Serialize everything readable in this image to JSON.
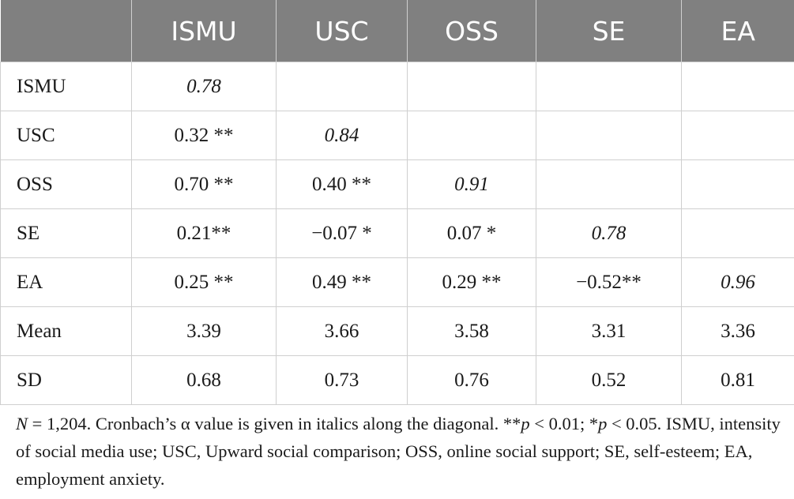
{
  "table": {
    "headers": [
      "",
      "ISMU",
      "USC",
      "OSS",
      "SE",
      "EA"
    ],
    "rows": [
      {
        "label": "ISMU",
        "cells": [
          "0.78",
          "",
          "",
          "",
          ""
        ],
        "diag": 0
      },
      {
        "label": "USC",
        "cells": [
          "0.32 **",
          "0.84",
          "",
          "",
          ""
        ],
        "diag": 1
      },
      {
        "label": "OSS",
        "cells": [
          "0.70 **",
          "0.40 **",
          "0.91",
          "",
          ""
        ],
        "diag": 2
      },
      {
        "label": "SE",
        "cells": [
          "0.21**",
          "−0.07 *",
          "0.07 *",
          "0.78",
          ""
        ],
        "diag": 3
      },
      {
        "label": "EA",
        "cells": [
          "0.25 **",
          "0.49 **",
          "0.29 **",
          "−0.52**",
          "0.96"
        ],
        "diag": 4
      },
      {
        "label": "Mean",
        "cells": [
          "3.39",
          "3.66",
          "3.58",
          "3.31",
          "3.36"
        ],
        "diag": -1
      },
      {
        "label": "SD",
        "cells": [
          "0.68",
          "0.73",
          "0.76",
          "0.52",
          "0.81"
        ],
        "diag": -1
      }
    ]
  },
  "note": {
    "n_symbol": "N",
    "n_rest": " = 1,204. Cronbach’s α value is given in italics along the diagonal. **",
    "p1_symbol": "p",
    "p1_rest": " < 0.01; *",
    "p2_symbol": "p",
    "p2_rest": " < 0.05.",
    "line2": "ISMU, intensity of social media use; USC, Upward social comparison; OSS, online social support; SE, self-esteem; EA, employment anxiety."
  }
}
